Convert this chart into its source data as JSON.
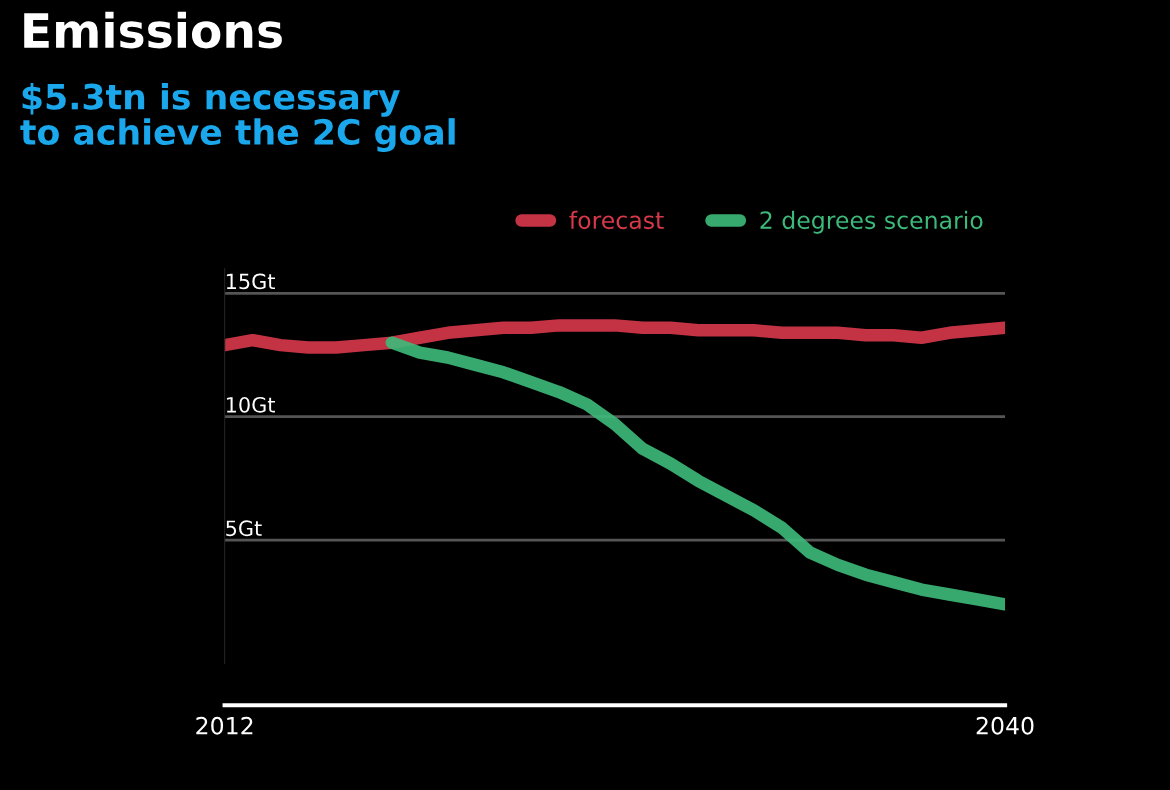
{
  "chart_data": {
    "type": "line",
    "title": "Emissions",
    "subtitle": "$5.3tn is necessary\nto achieve the 2C goal",
    "x": [
      2012,
      2013,
      2014,
      2015,
      2016,
      2017,
      2018,
      2019,
      2020,
      2021,
      2022,
      2023,
      2024,
      2025,
      2026,
      2027,
      2028,
      2029,
      2030,
      2031,
      2032,
      2033,
      2034,
      2035,
      2036,
      2037,
      2038,
      2039,
      2040
    ],
    "series": [
      {
        "name": "forecast",
        "color": "#d8394a",
        "values": [
          12.9,
          13.1,
          12.9,
          12.8,
          12.8,
          12.9,
          13.0,
          13.2,
          13.4,
          13.5,
          13.6,
          13.6,
          13.7,
          13.7,
          13.7,
          13.6,
          13.6,
          13.5,
          13.5,
          13.5,
          13.4,
          13.4,
          13.4,
          13.3,
          13.3,
          13.2,
          13.4,
          13.5,
          13.6
        ]
      },
      {
        "name": "2 degrees scenario",
        "color": "#3dba7a",
        "x": [
          2018,
          2019,
          2020,
          2021,
          2022,
          2023,
          2024,
          2025,
          2026,
          2027,
          2028,
          2029,
          2030,
          2031,
          2032,
          2033,
          2034,
          2035,
          2036,
          2037,
          2038,
          2039,
          2040
        ],
        "values": [
          13.0,
          12.6,
          12.4,
          12.1,
          11.8,
          11.4,
          11.0,
          10.5,
          9.7,
          8.7,
          8.1,
          7.4,
          6.8,
          6.2,
          5.5,
          4.5,
          4.0,
          3.6,
          3.3,
          3.0,
          2.8,
          2.6,
          2.4
        ]
      }
    ],
    "xlim": [
      2012,
      2040
    ],
    "xticks": [
      2012,
      2040
    ],
    "ylim": [
      0,
      16
    ],
    "yticks": [
      {
        "value": 5,
        "label": "5Gt"
      },
      {
        "value": 10,
        "label": "10Gt"
      },
      {
        "value": 15,
        "label": "15Gt"
      }
    ],
    "grid": "y",
    "legend": "top right",
    "marker": "none",
    "line_style": "solid"
  }
}
